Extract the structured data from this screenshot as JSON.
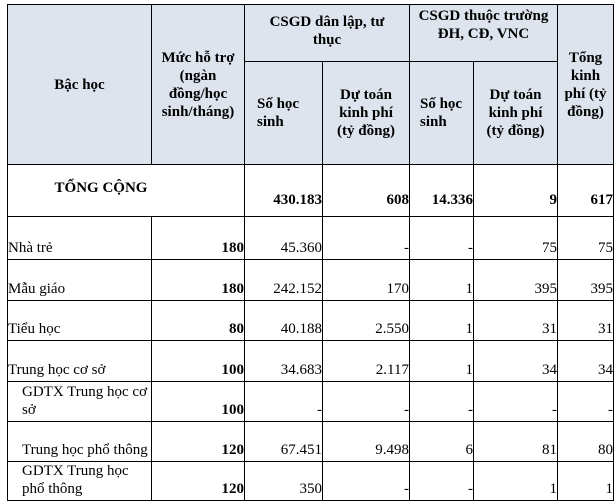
{
  "headers": {
    "level": "Bậc học",
    "support": "Mức hỗ trợ (ngàn đồng/học sinh/tháng)",
    "private_group": "CSGD dân lập, tư thục",
    "university_group": "CSGD thuộc trường ĐH, CĐ, VNC",
    "students": "Số học sinh",
    "budget": "Dự toán kinh phí (tỷ đồng)",
    "total_budget": "Tổng kinh phí (tỷ đồng)"
  },
  "total": {
    "label": "TỔNG CỘNG",
    "support": "",
    "private_students": "430.183",
    "private_budget": "608",
    "univ_students": "14.336",
    "univ_budget": "9",
    "total_budget": "617"
  },
  "rows": [
    {
      "level": "Nhà trẻ",
      "support": "180",
      "private_students": "45.360",
      "private_budget": "-",
      "univ_students": "-",
      "univ_budget": "75",
      "total_budget": "75"
    },
    {
      "level": "Mẫu giáo",
      "support": "180",
      "private_students": "242.152",
      "private_budget": "170",
      "univ_students": "1",
      "univ_budget": "395",
      "total_budget": "395"
    },
    {
      "level": "Tiểu học",
      "support": "80",
      "private_students": "40.188",
      "private_budget": "2.550",
      "univ_students": "1",
      "univ_budget": "31",
      "total_budget": "31"
    },
    {
      "level": "Trung học cơ sở",
      "support": "100",
      "private_students": "34.683",
      "private_budget": "2.117",
      "univ_students": "1",
      "univ_budget": "34",
      "total_budget": "34"
    },
    {
      "level": "GDTX Trung học cơ sở",
      "support": "100",
      "private_students": "-",
      "private_budget": "-",
      "univ_students": "-",
      "univ_budget": "-",
      "total_budget": "-"
    },
    {
      "level": "Trung học phổ thông",
      "support": "120",
      "private_students": "67.451",
      "private_budget": "9.498",
      "univ_students": "6",
      "univ_budget": "81",
      "total_budget": "80"
    },
    {
      "level": "GDTX Trung học phổ thông",
      "support": "120",
      "private_students": "350",
      "private_budget": "-",
      "univ_students": "-",
      "univ_budget": "1",
      "total_budget": "1"
    }
  ]
}
